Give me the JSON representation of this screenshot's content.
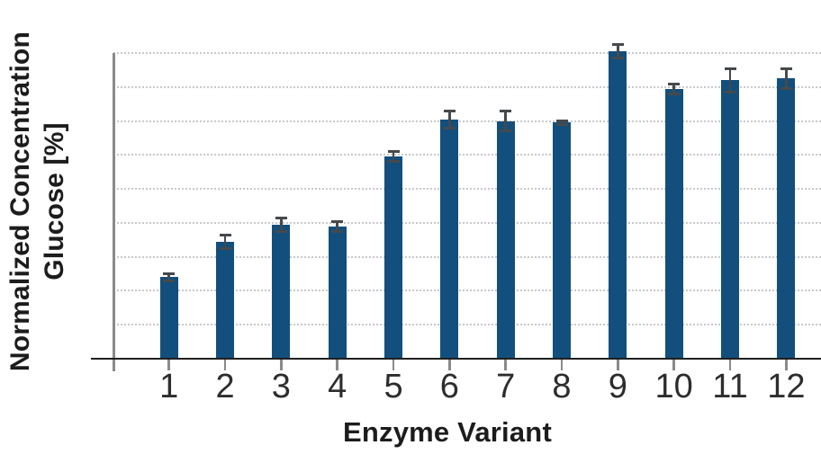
{
  "chart_data": {
    "type": "bar",
    "title": "",
    "xlabel": "Enzyme Variant",
    "ylabel_lines": [
      "Normalized Concentration",
      "Glucose [%]"
    ],
    "categories": [
      "1",
      "2",
      "3",
      "4",
      "5",
      "6",
      "7",
      "8",
      "9",
      "10",
      "11",
      "12"
    ],
    "series": [
      {
        "name": "Normalized Concentration Glucose [%]",
        "values": [
          24,
          34.5,
          39.5,
          39,
          59.5,
          70.5,
          70,
          69.5,
          90.5,
          79.5,
          82,
          82.5
        ],
        "errors_plus_minus": [
          1,
          2,
          2,
          1.5,
          1.5,
          2.5,
          3,
          0.5,
          2,
          1.5,
          3.5,
          3
        ]
      }
    ],
    "ylim": [
      0,
      90
    ],
    "gridline_step": 10,
    "grid": "horizontal-dotted",
    "y_tick_labels_visible": false,
    "legend_position": "none",
    "colors": {
      "bar": "#124F7D",
      "error": "#45494C",
      "grid": "#C9C9C9",
      "x_axis": "#1F1F1F",
      "y_axis": "#8A8A8A",
      "text": "#1C1C1C"
    }
  }
}
